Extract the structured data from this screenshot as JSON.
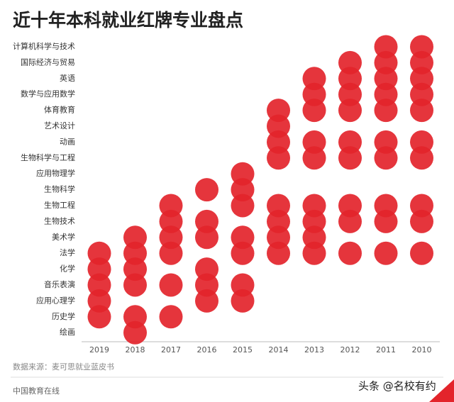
{
  "chart_data": {
    "type": "dot-matrix",
    "title": "近十年本科就业红牌专业盘点",
    "categories": [
      "计算机科学与技术",
      "国际经济与贸易",
      "英语",
      "数学与应用数学",
      "体育教育",
      "艺术设计",
      "动画",
      "生物科学与工程",
      "应用物理学",
      "生物科学",
      "生物工程",
      "生物技术",
      "美术学",
      "法学",
      "化学",
      "音乐表演",
      "应用心理学",
      "历史学",
      "绘画"
    ],
    "color": "#e3242b",
    "series": [
      {
        "name": "2019",
        "values": [
          0,
          0,
          0,
          0,
          0,
          0,
          0,
          0,
          0,
          0,
          0,
          0,
          0,
          1,
          1,
          1,
          1,
          1,
          0
        ]
      },
      {
        "name": "2018",
        "values": [
          0,
          0,
          0,
          0,
          0,
          0,
          0,
          0,
          0,
          0,
          0,
          0,
          1,
          1,
          1,
          1,
          0,
          1,
          1
        ]
      },
      {
        "name": "2017",
        "values": [
          0,
          0,
          0,
          0,
          0,
          0,
          0,
          0,
          0,
          0,
          1,
          1,
          1,
          1,
          0,
          1,
          0,
          1,
          0
        ]
      },
      {
        "name": "2016",
        "values": [
          0,
          0,
          0,
          0,
          0,
          0,
          0,
          0,
          0,
          1,
          0,
          1,
          1,
          0,
          1,
          1,
          1,
          0,
          0
        ]
      },
      {
        "name": "2015",
        "values": [
          0,
          0,
          0,
          0,
          0,
          0,
          0,
          0,
          1,
          1,
          1,
          0,
          1,
          1,
          0,
          1,
          1,
          0,
          0
        ]
      },
      {
        "name": "2014",
        "values": [
          0,
          0,
          0,
          0,
          1,
          1,
          1,
          1,
          0,
          0,
          1,
          1,
          1,
          1,
          0,
          0,
          0,
          0,
          0
        ]
      },
      {
        "name": "2013",
        "values": [
          0,
          0,
          1,
          1,
          1,
          0,
          1,
          1,
          0,
          0,
          1,
          1,
          1,
          1,
          0,
          0,
          0,
          0,
          0
        ]
      },
      {
        "name": "2012",
        "values": [
          0,
          1,
          1,
          1,
          1,
          0,
          1,
          1,
          0,
          0,
          1,
          1,
          0,
          1,
          0,
          0,
          0,
          0,
          0
        ]
      },
      {
        "name": "2011",
        "values": [
          1,
          1,
          1,
          1,
          1,
          0,
          1,
          1,
          0,
          0,
          1,
          1,
          0,
          1,
          0,
          0,
          0,
          0,
          0
        ]
      },
      {
        "name": "2010",
        "values": [
          1,
          1,
          1,
          1,
          1,
          0,
          1,
          1,
          0,
          0,
          1,
          1,
          0,
          1,
          0,
          0,
          0,
          0,
          0
        ]
      }
    ],
    "source": "数据来源：麦可思就业蓝皮书",
    "brand": "中国教育在线",
    "credit": "头条 @名校有约"
  }
}
